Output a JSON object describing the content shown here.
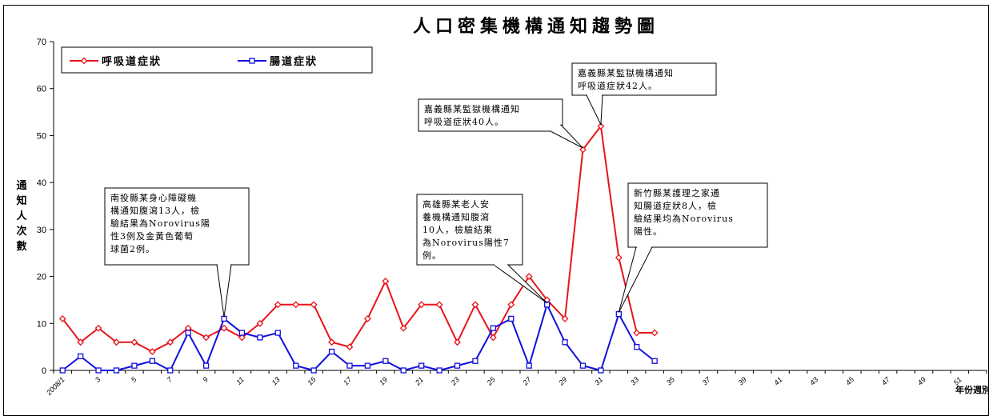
{
  "chart_data": {
    "type": "line",
    "title": "人口密集機構通知趨勢圖",
    "ylabel": "通知人次數",
    "xlabel": "年份週別",
    "ylim": [
      0,
      70
    ],
    "yticks": [
      0,
      10,
      20,
      30,
      40,
      50,
      60,
      70
    ],
    "x_tick_labels": [
      "2008/1",
      "3",
      "5",
      "7",
      "9",
      "11",
      "13",
      "15",
      "17",
      "19",
      "21",
      "23",
      "25",
      "27",
      "29",
      "31",
      "33",
      "35",
      "37",
      "39",
      "41",
      "43",
      "45",
      "47",
      "49",
      "51"
    ],
    "weeks_total": 52,
    "grid": false,
    "legend_position": "top-left",
    "series": [
      {
        "name": "呼吸道症狀",
        "color": "#e8141b",
        "marker": "diamond",
        "values": [
          11,
          6,
          9,
          6,
          6,
          4,
          6,
          9,
          7,
          9,
          7,
          10,
          14,
          14,
          14,
          6,
          5,
          11,
          19,
          9,
          14,
          14,
          6,
          14,
          7,
          14,
          20,
          15,
          11,
          47,
          52,
          24,
          8,
          8
        ]
      },
      {
        "name": "腸道症狀",
        "color": "#1010e0",
        "marker": "square",
        "values": [
          0,
          3,
          0,
          0,
          1,
          2,
          0,
          8,
          1,
          11,
          8,
          7,
          8,
          1,
          0,
          4,
          1,
          1,
          2,
          0,
          1,
          0,
          1,
          2,
          9,
          11,
          1,
          14,
          6,
          1,
          0,
          12,
          5,
          2
        ]
      }
    ],
    "annotations": [
      {
        "week": 10,
        "series": 1,
        "lines": [
          "南投縣某身心障礙機",
          "構通知腹瀉13人，檢",
          "驗結果為Norovirus陽",
          "性3例及金黃色葡萄",
          "球菌2例。"
        ]
      },
      {
        "week": 28,
        "series": 1,
        "lines": [
          "高雄縣某老人安",
          "養機構通知腹瀉",
          "10人，檢驗結果",
          "為Norovirus陽性7",
          "例。"
        ]
      },
      {
        "week": 30,
        "series": 0,
        "lines": [
          "嘉義縣某監獄機構通知",
          "呼吸道症狀40人。"
        ]
      },
      {
        "week": 31,
        "series": 0,
        "lines": [
          "嘉義縣某監獄機構通知",
          "呼吸道症狀42人。"
        ]
      },
      {
        "week": 32,
        "series": 1,
        "lines": [
          "新竹縣某護理之家通",
          "知腸道症狀8人，檢",
          "驗結果均為Norovirus",
          "陽性。"
        ]
      }
    ]
  }
}
